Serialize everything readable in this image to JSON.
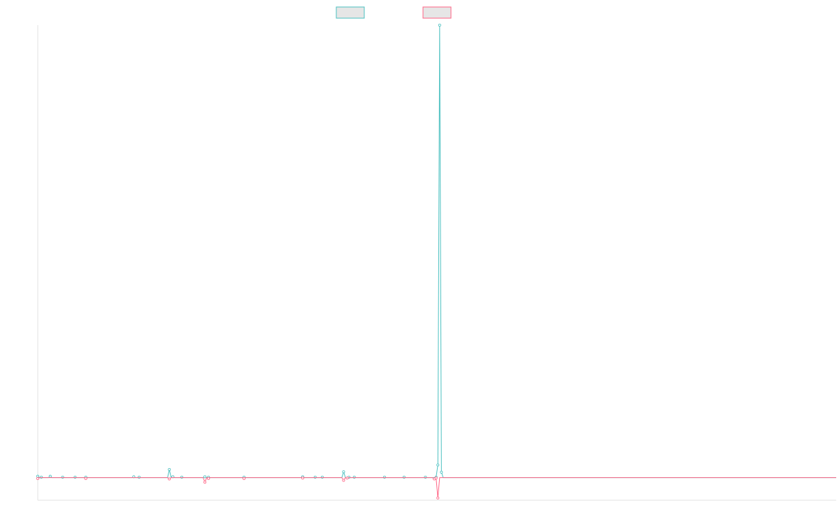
{
  "chart_data": {
    "type": "line",
    "title": "",
    "xlabel": "",
    "ylabel": "",
    "grid": false,
    "legend_position": "top-center",
    "ylim": [
      -0.05,
      1.0
    ],
    "x": [
      0,
      1,
      2,
      3,
      4,
      5,
      6,
      7,
      8,
      9,
      10,
      11,
      12,
      13,
      14,
      15,
      16,
      17,
      18,
      19,
      20,
      21,
      22,
      23,
      24,
      25,
      26,
      27,
      28,
      29,
      30,
      31,
      32,
      33,
      34,
      35,
      36,
      37,
      38,
      39,
      40,
      41,
      42,
      43,
      44,
      45,
      46,
      47,
      48,
      49,
      50,
      51,
      52,
      53,
      54,
      55,
      56,
      57,
      58,
      59,
      60,
      61,
      62,
      63,
      64,
      65,
      66,
      67,
      68,
      69,
      70,
      71,
      72,
      73,
      74,
      75,
      76,
      77,
      78,
      79,
      80,
      81,
      82,
      83,
      84,
      85,
      86,
      87,
      88,
      89,
      90,
      91,
      92,
      93,
      94,
      95,
      96,
      97,
      98,
      99,
      100,
      101,
      102,
      103,
      104,
      105,
      106,
      107,
      108,
      109,
      110,
      111,
      112,
      113,
      114,
      115,
      116,
      117,
      118,
      119,
      120,
      121,
      122,
      123,
      124,
      125,
      126,
      127,
      128,
      129,
      130,
      131,
      132,
      133,
      134,
      135,
      136,
      137,
      138,
      139,
      140,
      141,
      142,
      143,
      144,
      145,
      146,
      147,
      148,
      149,
      150,
      151,
      152,
      153,
      154,
      155,
      156,
      157,
      158,
      159,
      160,
      161,
      162,
      163,
      164,
      165,
      166,
      167,
      168,
      169,
      170,
      171,
      172,
      173,
      174,
      175,
      176,
      177,
      178,
      179,
      180,
      181,
      182,
      183,
      184,
      185,
      186,
      187,
      188,
      189,
      190,
      191,
      192,
      193,
      194,
      195,
      196,
      197,
      198,
      199,
      200,
      201,
      202,
      203,
      204,
      205,
      206,
      207,
      208,
      209,
      210,
      211,
      212,
      213,
      214,
      215,
      216,
      217,
      218,
      219,
      220,
      221,
      222,
      223,
      224,
      225,
      226,
      227,
      228,
      229,
      230,
      231,
      232,
      233,
      234,
      235,
      236,
      237,
      238,
      239,
      240,
      241,
      242,
      243,
      244,
      245,
      246,
      247,
      248,
      249,
      250,
      251,
      252,
      253,
      254,
      255,
      256,
      257,
      258,
      259,
      260,
      261,
      262,
      263,
      264,
      265,
      266,
      267,
      268,
      269,
      270,
      271,
      272,
      273,
      274,
      275,
      276,
      277,
      278,
      279,
      280,
      281,
      282,
      283,
      284,
      285,
      286,
      287,
      288,
      289,
      290,
      291,
      292,
      293,
      294,
      295,
      296,
      297,
      298,
      299,
      300,
      301,
      302,
      303,
      304,
      305,
      306,
      307,
      308,
      309,
      310,
      311,
      312,
      313,
      314,
      315,
      316,
      317,
      318,
      319,
      320,
      321,
      322,
      323,
      324,
      325,
      326,
      327,
      328,
      329,
      330,
      331,
      332,
      333,
      334,
      335,
      336,
      337,
      338,
      339,
      340,
      341,
      342,
      343,
      344,
      345,
      346,
      347,
      348,
      349,
      350,
      351,
      352,
      353,
      354,
      355,
      356,
      357,
      358,
      359,
      360,
      361,
      362,
      363,
      364,
      365,
      366,
      367,
      368,
      369,
      370,
      371,
      372,
      373,
      374,
      375,
      376,
      377,
      378,
      379,
      380,
      381,
      382,
      383,
      384,
      385,
      386,
      387,
      388,
      389,
      390,
      391,
      392,
      393,
      394,
      395,
      396,
      397,
      398,
      399,
      400,
      401,
      402,
      403,
      404,
      405,
      406,
      407,
      408,
      409,
      410,
      411,
      412,
      413,
      414,
      415,
      416,
      417,
      418,
      419,
      420,
      421,
      422,
      423,
      424,
      425,
      426,
      427,
      428,
      429,
      430,
      431,
      432,
      433,
      434,
      435,
      436,
      437,
      438,
      439,
      440,
      441,
      442,
      443,
      444,
      445,
      446,
      447,
      448,
      449
    ],
    "series": [
      {
        "color": "#4bc0c0",
        "sparse_values": {
          "0": 0.003,
          "2": 0.001,
          "7": 0.003,
          "14": 0.001,
          "21": 0.001,
          "27": 0.001,
          "54": 0.002,
          "57": 0.001,
          "74": 0.018,
          "76": 0.002,
          "81": 0.001,
          "94": 0.002,
          "96": 0.001,
          "116": 0.001,
          "149": 0.002,
          "156": 0.001,
          "160": 0.001,
          "172": 0.013,
          "175": 0.001,
          "178": 0.001,
          "195": 0.001,
          "206": 0.001,
          "218": 0.001,
          "224": 0.001,
          "225": 0.028,
          "226": 1.0,
          "227": 0.012
        }
      },
      {
        "color": "#ff6384",
        "sparse_values": {
          "0": -0.002,
          "27": -0.002,
          "74": -0.003,
          "94": -0.01,
          "96": -0.002,
          "116": -0.002,
          "149": -0.001,
          "172": -0.006,
          "174": -0.001,
          "223": -0.003,
          "224": -0.001,
          "225": -0.045
        }
      }
    ]
  }
}
